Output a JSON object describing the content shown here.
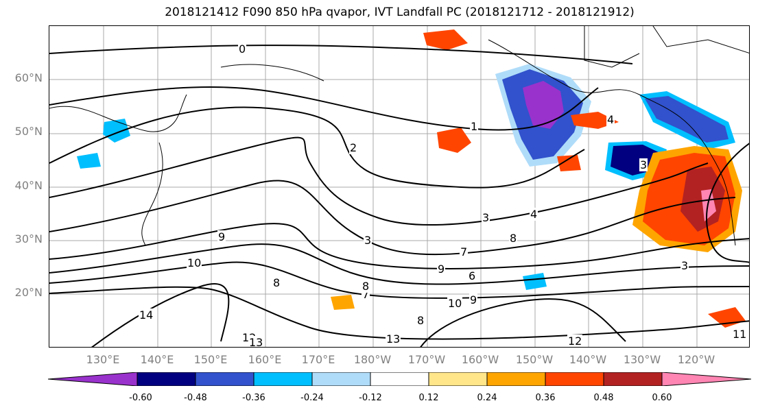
{
  "title": "2018121412 F090 850 hPa qvapor, IVT Landfall PC (2018121712 - 2018121912)",
  "map": {
    "lat_labels": [
      "60°N",
      "50°N",
      "40°N",
      "30°N",
      "20°N"
    ],
    "lon_labels": [
      "130°E",
      "140°E",
      "150°E",
      "160°E",
      "170°E",
      "180°W",
      "170°W",
      "160°W",
      "150°W",
      "140°W",
      "130°W",
      "120°W"
    ],
    "contour_labels": [
      "0",
      "1",
      "2",
      "3",
      "3",
      "3",
      "3",
      "4",
      "4",
      "6",
      "7",
      "7",
      "8",
      "8",
      "8",
      "8",
      "9",
      "9",
      "9",
      "10",
      "10",
      "11",
      "12",
      "12",
      "13",
      "13",
      "14"
    ]
  },
  "colorbar": {
    "colors": [
      "#9932cc",
      "#000080",
      "#3152cc",
      "#00bfff",
      "#afdcf9",
      "#ffffff",
      "#ffe68a",
      "#ffa500",
      "#ff4500",
      "#b22222",
      "#ff85b3"
    ],
    "tick_labels": [
      "-0.60",
      "-0.48",
      "-0.36",
      "-0.24",
      "-0.12",
      "0.12",
      "0.24",
      "0.36",
      "0.48",
      "0.60"
    ]
  }
}
